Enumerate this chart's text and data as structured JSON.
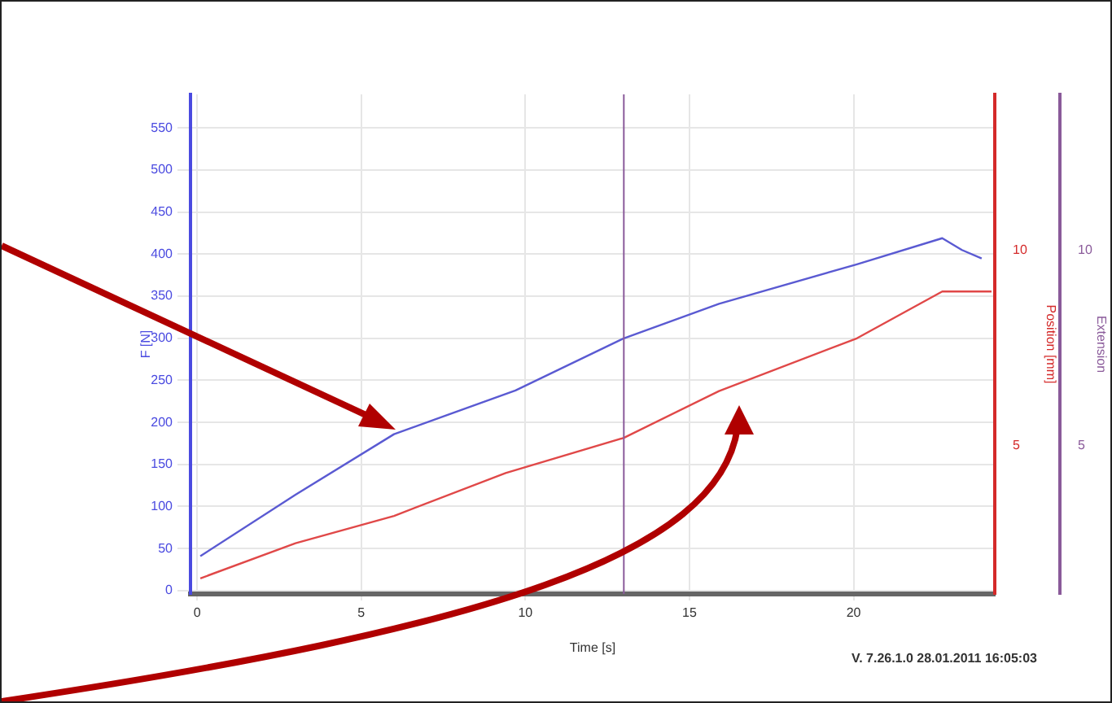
{
  "chart_data": {
    "type": "line",
    "xlabel": "Time [s]",
    "ylabel": "F [N]",
    "y2label": "Position [mm]",
    "y3label": "Extension",
    "xlim": [
      -0.2,
      24.3
    ],
    "xticks": [
      0,
      5,
      10,
      15,
      20
    ],
    "ylim": [
      -4,
      590
    ],
    "yticks": [
      0,
      50,
      100,
      150,
      200,
      250,
      300,
      350,
      400,
      450,
      500,
      550
    ],
    "y2lim": [
      1.2,
      14
    ],
    "y2ticks": [
      5,
      10
    ],
    "y3lim": [
      1.2,
      14
    ],
    "y3ticks": [
      5,
      10
    ],
    "grid": true,
    "legend": false,
    "marker": "none",
    "line_style": "solid",
    "series": [
      {
        "color": "#5a5ad2",
        "x": [
          0.1,
          3,
          6,
          9.7,
          13,
          15.9,
          20.1,
          22.7,
          23.3,
          23.9
        ],
        "values": [
          41,
          114,
          186,
          238,
          300,
          341,
          388,
          419,
          405,
          395
        ]
      },
      {
        "color": "#e04848",
        "axis": "y2",
        "x": [
          0.1,
          3,
          6,
          9.4,
          13,
          15.9,
          20.1,
          22.7,
          24.2
        ],
        "values": [
          1.6,
          2.5,
          3.2,
          4.3,
          5.2,
          6.4,
          7.75,
          8.95,
          8.95
        ]
      }
    ],
    "ref_lines": [
      {
        "axis": "x",
        "value": 13,
        "color": "#8a5a9a"
      }
    ],
    "annotations": [
      "V. 7.26.1.0 28.01.2011 16:05:03"
    ]
  }
}
